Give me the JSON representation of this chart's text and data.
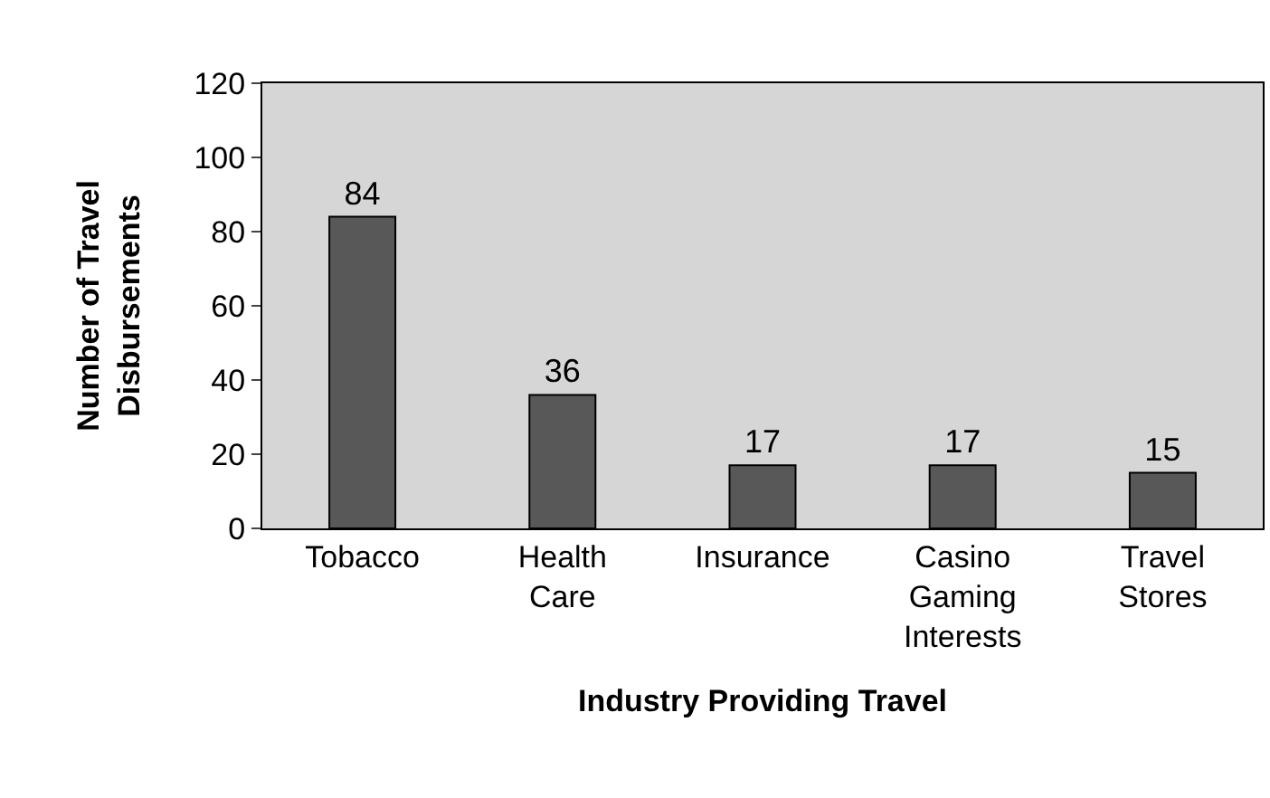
{
  "chart_data": {
    "type": "bar",
    "xlabel": "Industry Providing Travel",
    "ylabel": "Number of Travel\nDisbursements",
    "categories": [
      "Tobacco",
      "Health\nCare",
      "Insurance",
      "Casino\nGaming\nInterests",
      "Travel\nStores"
    ],
    "values": [
      84,
      36,
      17,
      17,
      15
    ],
    "color": "#585858",
    "ylim": [
      0,
      120
    ],
    "yticks": [
      0,
      20,
      40,
      60,
      80,
      100,
      120
    ],
    "data_labels": true,
    "grid": false,
    "legend": false
  }
}
